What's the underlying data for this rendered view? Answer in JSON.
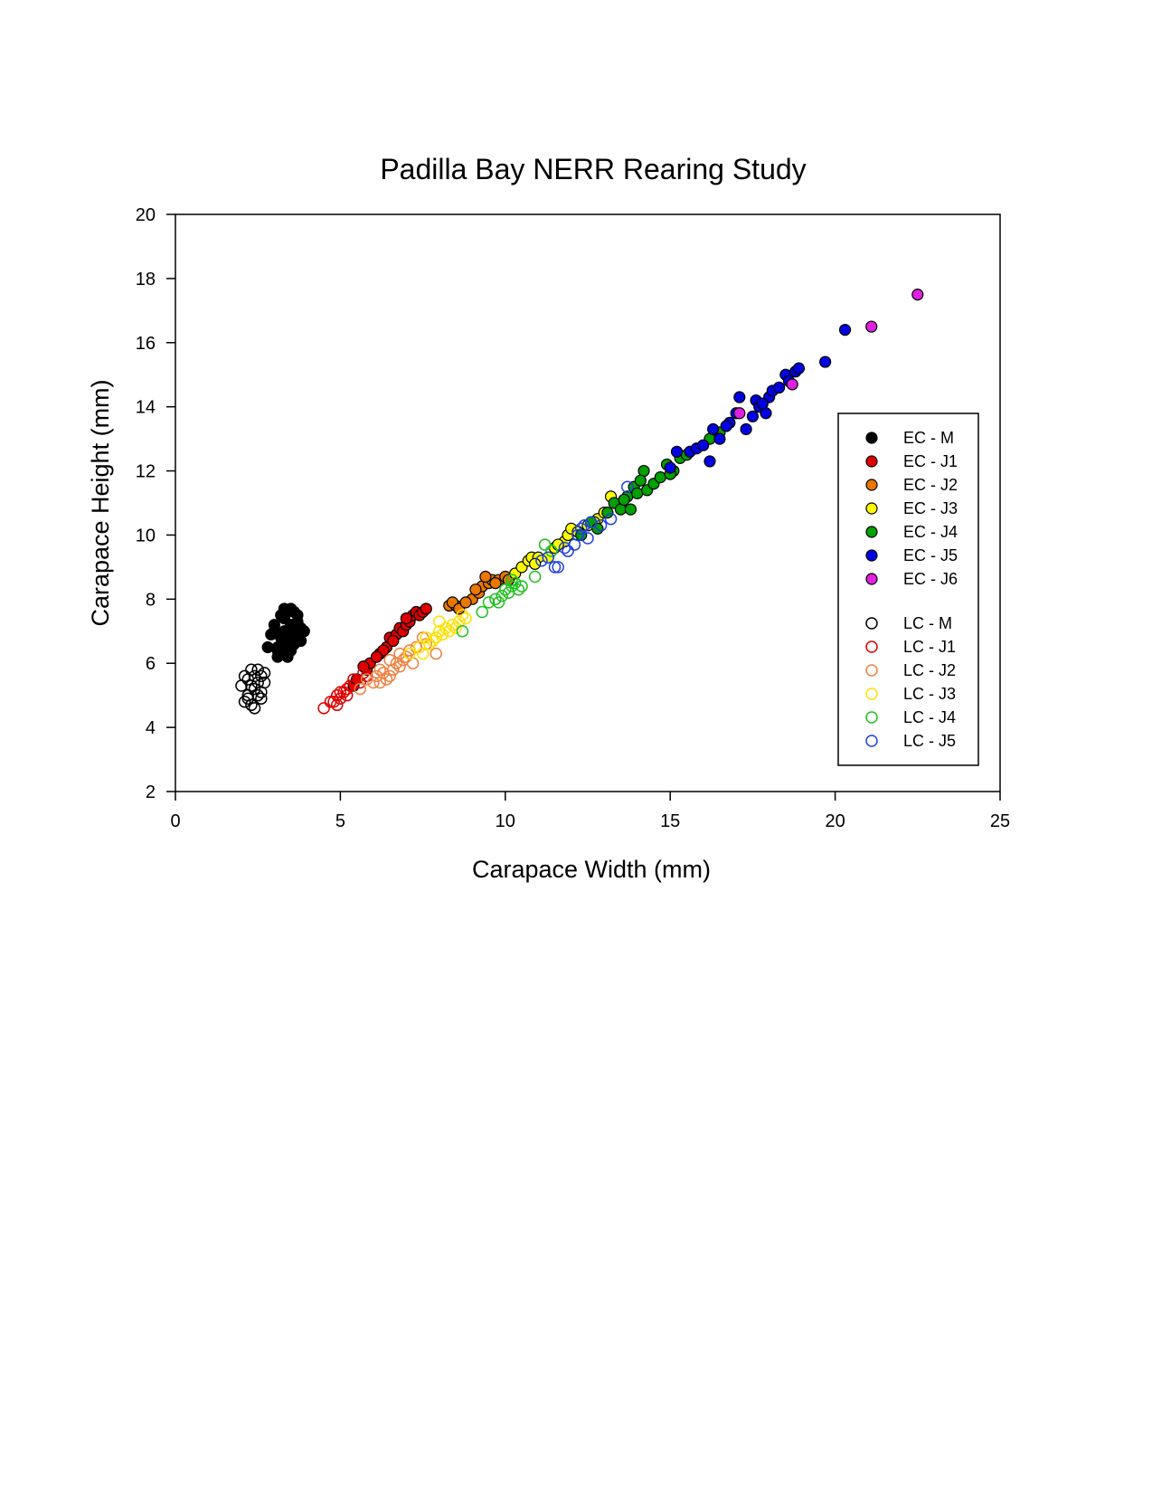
{
  "chart_data": {
    "type": "scatter",
    "title": "Padilla Bay NERR Rearing Study",
    "xlabel": "Carapace Width (mm)",
    "ylabel": "Carapace Height (mm)",
    "xlim": [
      0,
      25
    ],
    "ylim": [
      2,
      20
    ],
    "xticks": [
      0,
      5,
      10,
      15,
      20,
      25
    ],
    "yticks": [
      2,
      4,
      6,
      8,
      10,
      12,
      14,
      16,
      18,
      20
    ],
    "grid": false,
    "legend_position": "right",
    "series": [
      {
        "name": "EC - M",
        "color": "#000000",
        "fill": true,
        "points": [
          [
            3.1,
            6.5
          ],
          [
            3.2,
            6.8
          ],
          [
            3.3,
            7.0
          ],
          [
            3.4,
            6.6
          ],
          [
            3.5,
            7.2
          ],
          [
            3.6,
            6.9
          ],
          [
            3.3,
            7.4
          ],
          [
            3.4,
            7.6
          ],
          [
            3.2,
            7.5
          ],
          [
            3.6,
            7.6
          ],
          [
            3.7,
            7.3
          ],
          [
            3.8,
            7.1
          ],
          [
            3.5,
            6.4
          ],
          [
            3.3,
            6.3
          ],
          [
            3.1,
            6.2
          ],
          [
            3.0,
            7.0
          ],
          [
            3.2,
            6.9
          ],
          [
            3.6,
            6.6
          ],
          [
            3.7,
            6.8
          ],
          [
            3.4,
            6.2
          ],
          [
            2.8,
            6.5
          ],
          [
            2.9,
            6.9
          ],
          [
            3.0,
            7.2
          ],
          [
            3.5,
            7.7
          ],
          [
            3.9,
            7.0
          ],
          [
            3.8,
            6.7
          ],
          [
            3.3,
            7.7
          ],
          [
            3.1,
            6.4
          ],
          [
            3.5,
            6.9
          ],
          [
            3.7,
            7.5
          ]
        ]
      },
      {
        "name": "EC - J1",
        "color": "#e00000",
        "fill": true,
        "points": [
          [
            5.4,
            5.3
          ],
          [
            5.5,
            5.5
          ],
          [
            5.8,
            5.8
          ],
          [
            5.9,
            6.0
          ],
          [
            6.2,
            6.3
          ],
          [
            6.4,
            6.5
          ],
          [
            6.5,
            6.8
          ],
          [
            6.7,
            6.9
          ],
          [
            6.8,
            7.1
          ],
          [
            6.9,
            7.0
          ],
          [
            7.0,
            7.2
          ],
          [
            7.1,
            7.3
          ],
          [
            7.2,
            7.5
          ],
          [
            7.3,
            7.6
          ],
          [
            7.4,
            7.5
          ],
          [
            7.5,
            7.6
          ],
          [
            7.6,
            7.7
          ],
          [
            6.3,
            6.4
          ],
          [
            6.6,
            6.7
          ],
          [
            7.0,
            7.4
          ],
          [
            5.7,
            5.9
          ],
          [
            6.1,
            6.2
          ]
        ]
      },
      {
        "name": "EC - J2",
        "color": "#e87800",
        "fill": true,
        "points": [
          [
            8.3,
            7.8
          ],
          [
            8.5,
            7.8
          ],
          [
            8.4,
            7.9
          ],
          [
            8.6,
            7.7
          ],
          [
            9.0,
            8.0
          ],
          [
            9.2,
            8.2
          ],
          [
            9.3,
            8.4
          ],
          [
            9.5,
            8.5
          ],
          [
            9.6,
            8.6
          ],
          [
            9.4,
            8.7
          ],
          [
            9.8,
            8.6
          ],
          [
            10.0,
            8.7
          ],
          [
            9.1,
            8.3
          ],
          [
            8.8,
            7.9
          ],
          [
            9.7,
            8.5
          ],
          [
            10.1,
            8.6
          ]
        ]
      },
      {
        "name": "EC - J3",
        "color": "#ffff00",
        "fill": true,
        "points": [
          [
            10.3,
            8.8
          ],
          [
            10.5,
            9.0
          ],
          [
            10.7,
            9.2
          ],
          [
            10.8,
            9.3
          ],
          [
            11.0,
            9.3
          ],
          [
            11.3,
            9.3
          ],
          [
            11.5,
            9.6
          ],
          [
            11.8,
            9.8
          ],
          [
            11.9,
            10.0
          ],
          [
            12.0,
            10.2
          ],
          [
            12.2,
            10.1
          ],
          [
            12.5,
            10.3
          ],
          [
            12.8,
            10.5
          ],
          [
            13.0,
            10.7
          ],
          [
            13.2,
            11.2
          ],
          [
            11.6,
            9.7
          ],
          [
            10.9,
            9.1
          ],
          [
            12.7,
            10.4
          ]
        ]
      },
      {
        "name": "EC - J4",
        "color": "#00a000",
        "fill": true,
        "points": [
          [
            12.3,
            10.0
          ],
          [
            12.6,
            10.4
          ],
          [
            12.8,
            10.2
          ],
          [
            13.1,
            10.7
          ],
          [
            13.3,
            11.0
          ],
          [
            13.5,
            10.8
          ],
          [
            13.7,
            11.2
          ],
          [
            13.8,
            10.8
          ],
          [
            13.9,
            11.5
          ],
          [
            14.0,
            11.3
          ],
          [
            14.2,
            12.0
          ],
          [
            14.3,
            11.4
          ],
          [
            14.5,
            11.6
          ],
          [
            14.7,
            11.8
          ],
          [
            14.9,
            12.2
          ],
          [
            15.1,
            12.0
          ],
          [
            15.3,
            12.4
          ],
          [
            15.5,
            12.5
          ],
          [
            16.2,
            13.0
          ],
          [
            16.5,
            13.2
          ],
          [
            13.6,
            11.1
          ],
          [
            14.1,
            11.7
          ],
          [
            15.0,
            11.9
          ]
        ]
      },
      {
        "name": "EC - J5",
        "color": "#0000e0",
        "fill": true,
        "points": [
          [
            15.0,
            12.1
          ],
          [
            15.2,
            12.6
          ],
          [
            15.6,
            12.6
          ],
          [
            15.8,
            12.7
          ],
          [
            16.0,
            12.8
          ],
          [
            16.2,
            12.3
          ],
          [
            16.3,
            13.3
          ],
          [
            16.5,
            13.0
          ],
          [
            16.8,
            13.5
          ],
          [
            17.0,
            13.8
          ],
          [
            17.1,
            14.3
          ],
          [
            17.3,
            13.3
          ],
          [
            17.5,
            13.7
          ],
          [
            17.6,
            14.2
          ],
          [
            17.7,
            14.0
          ],
          [
            17.9,
            13.8
          ],
          [
            18.0,
            14.3
          ],
          [
            18.1,
            14.5
          ],
          [
            18.3,
            14.6
          ],
          [
            18.5,
            15.0
          ],
          [
            18.6,
            14.8
          ],
          [
            18.8,
            15.1
          ],
          [
            18.9,
            15.2
          ],
          [
            19.7,
            15.4
          ],
          [
            20.3,
            16.4
          ],
          [
            16.7,
            13.4
          ],
          [
            17.8,
            14.1
          ]
        ]
      },
      {
        "name": "EC - J6",
        "color": "#e020e0",
        "fill": true,
        "points": [
          [
            17.1,
            13.8
          ],
          [
            18.7,
            14.7
          ],
          [
            21.1,
            16.5
          ],
          [
            22.5,
            17.5
          ]
        ]
      },
      {
        "name": "LC - M",
        "color": "#000000",
        "fill": false,
        "points": [
          [
            2.0,
            5.3
          ],
          [
            2.1,
            4.8
          ],
          [
            2.2,
            5.5
          ],
          [
            2.3,
            5.8
          ],
          [
            2.4,
            5.2
          ],
          [
            2.5,
            5.0
          ],
          [
            2.6,
            5.6
          ],
          [
            2.7,
            5.4
          ],
          [
            2.2,
            5.0
          ],
          [
            2.3,
            4.7
          ],
          [
            2.4,
            4.6
          ],
          [
            2.5,
            5.4
          ],
          [
            2.6,
            5.1
          ],
          [
            2.1,
            5.6
          ],
          [
            2.7,
            5.7
          ],
          [
            2.3,
            5.3
          ],
          [
            2.4,
            5.6
          ],
          [
            2.2,
            4.9
          ],
          [
            2.6,
            4.9
          ],
          [
            2.5,
            5.8
          ]
        ]
      },
      {
        "name": "LC - J1",
        "color": "#e00000",
        "fill": false,
        "points": [
          [
            4.5,
            4.6
          ],
          [
            4.7,
            4.8
          ],
          [
            4.8,
            4.8
          ],
          [
            4.9,
            5.0
          ],
          [
            5.0,
            4.9
          ],
          [
            5.1,
            5.1
          ],
          [
            5.2,
            5.2
          ],
          [
            5.3,
            5.3
          ],
          [
            5.4,
            5.5
          ],
          [
            5.6,
            5.4
          ],
          [
            5.7,
            5.7
          ],
          [
            5.8,
            5.6
          ],
          [
            4.9,
            4.7
          ],
          [
            5.0,
            5.1
          ],
          [
            5.2,
            5.0
          ]
        ]
      },
      {
        "name": "LC - J2",
        "color": "#f08040",
        "fill": false,
        "points": [
          [
            5.6,
            5.2
          ],
          [
            5.8,
            5.5
          ],
          [
            6.0,
            5.4
          ],
          [
            6.1,
            5.6
          ],
          [
            6.2,
            5.4
          ],
          [
            6.3,
            5.7
          ],
          [
            6.4,
            5.5
          ],
          [
            6.5,
            5.6
          ],
          [
            6.6,
            5.8
          ],
          [
            6.7,
            6.0
          ],
          [
            6.8,
            5.9
          ],
          [
            6.9,
            6.1
          ],
          [
            7.0,
            6.2
          ],
          [
            7.1,
            6.4
          ],
          [
            7.3,
            6.5
          ],
          [
            7.6,
            6.6
          ],
          [
            7.9,
            6.3
          ],
          [
            6.2,
            5.8
          ],
          [
            6.5,
            6.1
          ],
          [
            6.8,
            6.3
          ],
          [
            7.2,
            6.0
          ],
          [
            7.5,
            6.8
          ]
        ]
      },
      {
        "name": "LC - J3",
        "color": "#ffe000",
        "fill": false,
        "points": [
          [
            7.1,
            6.3
          ],
          [
            7.4,
            6.5
          ],
          [
            7.6,
            6.8
          ],
          [
            7.8,
            6.7
          ],
          [
            7.9,
            6.8
          ],
          [
            8.0,
            7.0
          ],
          [
            8.1,
            6.9
          ],
          [
            8.2,
            7.1
          ],
          [
            8.3,
            7.0
          ],
          [
            8.4,
            7.2
          ],
          [
            8.5,
            7.1
          ],
          [
            8.6,
            7.3
          ],
          [
            8.8,
            7.4
          ],
          [
            7.5,
            6.3
          ],
          [
            8.7,
            7.5
          ],
          [
            7.7,
            6.6
          ],
          [
            8.0,
            7.3
          ]
        ]
      },
      {
        "name": "LC - J4",
        "color": "#20c020",
        "fill": false,
        "points": [
          [
            8.7,
            7.0
          ],
          [
            9.3,
            7.6
          ],
          [
            9.5,
            7.9
          ],
          [
            9.7,
            8.0
          ],
          [
            9.9,
            8.1
          ],
          [
            10.0,
            8.3
          ],
          [
            10.1,
            8.2
          ],
          [
            10.2,
            8.4
          ],
          [
            10.3,
            8.5
          ],
          [
            10.4,
            8.3
          ],
          [
            10.5,
            8.4
          ],
          [
            10.9,
            8.7
          ],
          [
            11.2,
            9.7
          ],
          [
            11.4,
            9.5
          ],
          [
            10.2,
            8.6
          ],
          [
            9.8,
            7.9
          ]
        ]
      },
      {
        "name": "LC - J5",
        "color": "#2040e0",
        "fill": false,
        "points": [
          [
            11.1,
            9.2
          ],
          [
            11.5,
            9.0
          ],
          [
            11.6,
            9.0
          ],
          [
            11.8,
            9.6
          ],
          [
            11.9,
            9.5
          ],
          [
            12.1,
            9.7
          ],
          [
            12.3,
            10.2
          ],
          [
            12.4,
            10.3
          ],
          [
            12.5,
            9.9
          ],
          [
            12.6,
            10.4
          ],
          [
            12.9,
            10.3
          ],
          [
            13.2,
            10.5
          ],
          [
            13.7,
            11.5
          ],
          [
            11.3,
            9.3
          ],
          [
            12.2,
            10.0
          ]
        ]
      }
    ]
  }
}
